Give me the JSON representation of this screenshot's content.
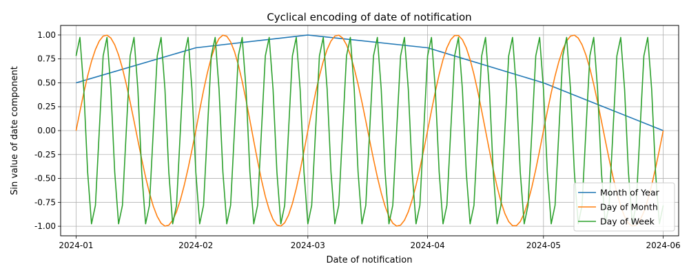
{
  "chart_data": {
    "type": "line",
    "title": "Cyclical encoding of date of notification",
    "xlabel": "Date of notification",
    "ylabel": "Sin value of date component",
    "x_range": [
      "2024-01-01",
      "2024-06-01"
    ],
    "xlim": [
      "2023-12-28",
      "2024-06-05"
    ],
    "ylim": [
      -1.1,
      1.1
    ],
    "x_ticks": [
      "2024-01",
      "2024-02",
      "2024-03",
      "2024-04",
      "2024-05",
      "2024-06"
    ],
    "y_ticks": [
      "1.00",
      "0.75",
      "0.50",
      "0.25",
      "0.00",
      "-0.25",
      "-0.50",
      "-0.75",
      "-1.00"
    ],
    "grid": true,
    "legend_position": "lower-right",
    "series": [
      {
        "name": "Month of Year",
        "color": "#1f77b4",
        "description": "sin(2*pi*month/12), plotted at month starts",
        "x": [
          "2024-01-01",
          "2024-02-01",
          "2024-03-01",
          "2024-04-01",
          "2024-05-01",
          "2024-06-01"
        ],
        "y": [
          0.5,
          0.866,
          1.0,
          0.866,
          0.5,
          0.0
        ]
      },
      {
        "name": "Day of Month",
        "color": "#ff7f0e",
        "x": [
          "2024-01-01",
          "2024-01-09",
          "2024-01-24",
          "2024-02-09",
          "2024-02-24",
          "2024-03-09",
          "2024-03-24",
          "2024-04-09",
          "2024-04-24",
          "2024-05-09",
          "2024-05-24",
          "2024-06-01"
        ],
        "y": [
          0.0,
          1.0,
          -1.0,
          1.0,
          -1.0,
          1.0,
          -1.0,
          1.0,
          -1.0,
          1.0,
          -1.0,
          0.21
        ]
      },
      {
        "name": "Day of Week",
        "color": "#2ca02c",
        "x": [
          "2024-01-01",
          "2024-01-03",
          "2024-01-06",
          "2024-01-10",
          "2024-01-13",
          "2024-01-17",
          "2024-06-01"
        ],
        "y": [
          -0.78,
          0.97,
          -0.97,
          0.97,
          -0.97,
          0.97,
          -0.78
        ]
      }
    ]
  }
}
